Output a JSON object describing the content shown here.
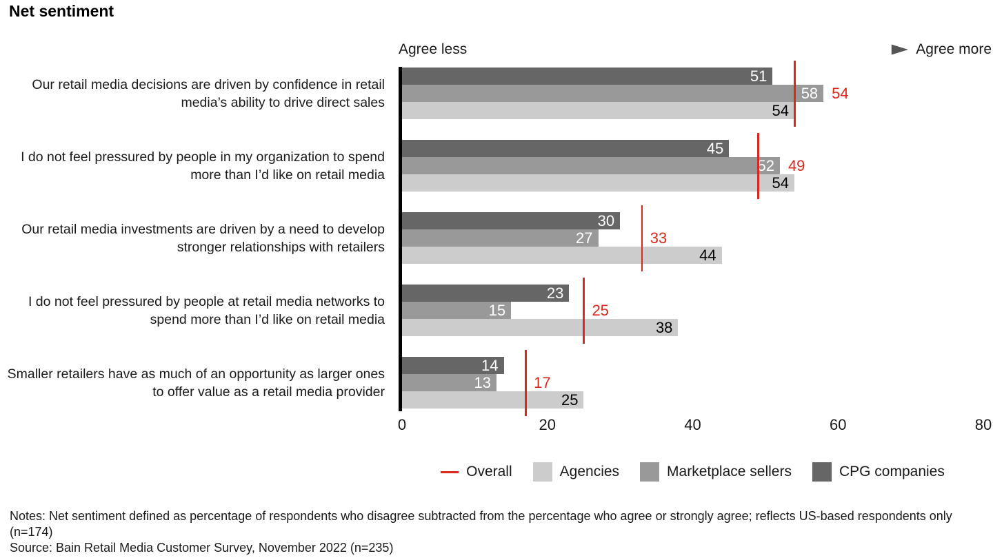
{
  "title": "Net sentiment",
  "axis_annotation": {
    "left": "Agree less",
    "right": "Agree more"
  },
  "colors": {
    "cpg": "#666666",
    "marketplace": "#999999",
    "agencies": "#cccccc",
    "overall": "#da291c",
    "axis": "#000000",
    "arrow_start": "#b3b3b3",
    "arrow_end": "#555555"
  },
  "chart_data": {
    "type": "bar",
    "orientation": "horizontal",
    "title": "Net sentiment",
    "xlim": [
      0,
      80
    ],
    "x_ticks": [
      0,
      20,
      40,
      60,
      80
    ],
    "grid": false,
    "legend_position": "bottom",
    "categories": [
      "Our retail media decisions are driven by confidence in retail media’s ability to drive direct sales",
      "I do not feel pressured by people in my organization to spend more than I’d like on retail media",
      "Our retail media investments are driven by a need to develop stronger relationships with retailers",
      "I do not feel pressured by people at retail media networks to spend more than I’d like on retail media",
      "Smaller retailers have as much of an opportunity as larger ones to offer value as a retail media provider"
    ],
    "series": [
      {
        "name": "CPG companies",
        "color_key": "cpg",
        "label_color": "#ffffff",
        "values": [
          51,
          45,
          30,
          23,
          14
        ]
      },
      {
        "name": "Marketplace sellers",
        "color_key": "marketplace",
        "label_color": "#ffffff",
        "values": [
          58,
          52,
          27,
          15,
          13
        ]
      },
      {
        "name": "Agencies",
        "color_key": "agencies",
        "label_color": "#000000",
        "values": [
          54,
          54,
          44,
          38,
          25
        ]
      }
    ],
    "overall": {
      "name": "Overall",
      "values": [
        54,
        49,
        33,
        25,
        17
      ]
    }
  },
  "legend": {
    "items": [
      {
        "label": "Overall",
        "marker": "line",
        "color_key": "overall"
      },
      {
        "label": "Agencies",
        "marker": "square",
        "color_key": "agencies"
      },
      {
        "label": "Marketplace sellers",
        "marker": "square",
        "color_key": "marketplace"
      },
      {
        "label": "CPG companies",
        "marker": "square",
        "color_key": "cpg"
      }
    ]
  },
  "notes": "Notes: Net sentiment defined as percentage of respondents who disagree subtracted from the percentage who agree or strongly agree; reflects US-based respondents only (n=174)",
  "source": "Source: Bain Retail Media Customer Survey, November 2022 (n=235)"
}
